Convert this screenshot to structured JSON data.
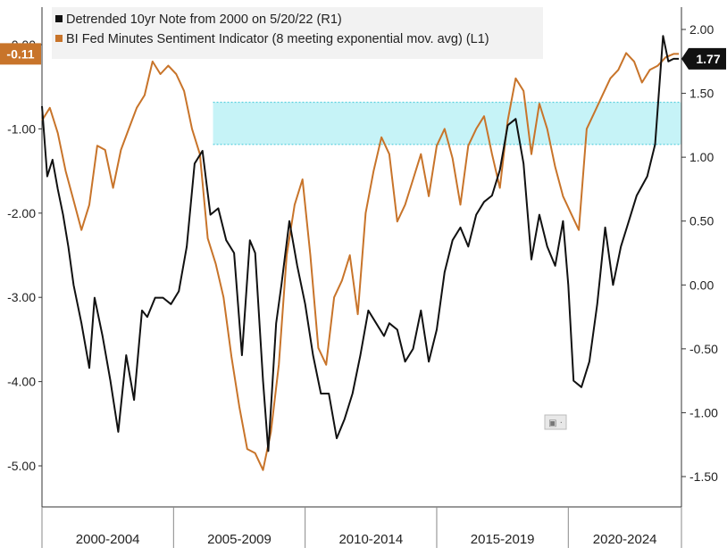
{
  "colors": {
    "note_series": "#111111",
    "sentiment_series": "#c8742a",
    "band_fill": "#c6f3f7",
    "band_edge": "#3cc8d8",
    "badge_left": "#c8742a",
    "badge_right": "#111111"
  },
  "chart_data": {
    "type": "line",
    "title": "",
    "xlabel": "",
    "ylabel_left": "",
    "ylabel_right": "",
    "xlim": [
      2000.0,
      2024.3
    ],
    "x_axis_categories": [
      "2000-2004",
      "2005-2009",
      "2010-2014",
      "2015-2019",
      "2020-2024"
    ],
    "x_category_bounds": [
      2000.0,
      2005.0,
      2010.0,
      2015.0,
      2020.0,
      2024.3
    ],
    "ylim_left": [
      -5.5,
      0.5
    ],
    "ylim_right": [
      -1.75,
      2.2
    ],
    "left_ticks": [
      "0.00",
      "-1.00",
      "-2.00",
      "-3.00",
      "-4.00",
      "-5.00"
    ],
    "right_ticks": [
      "2.00",
      "1.50",
      "1.00",
      "0.50",
      "0.00",
      "-0.50",
      "-1.00",
      "-1.50"
    ],
    "grid": false,
    "legend_position": "top-left",
    "highlight_band_right_axis": [
      1.1,
      1.43
    ],
    "highlight_band_x": [
      2006.5,
      2024.3
    ],
    "series": [
      {
        "name": "Detrended 10yr Note from 2000 on 5/20/22 (R1)",
        "axis": "right",
        "current_value_label": "1.77",
        "x": [
          2000.0,
          2000.2,
          2000.4,
          2000.6,
          2000.8,
          2001.0,
          2001.2,
          2001.5,
          2001.8,
          2002.0,
          2002.3,
          2002.6,
          2002.9,
          2003.2,
          2003.5,
          2003.8,
          2004.0,
          2004.3,
          2004.6,
          2004.9,
          2005.2,
          2005.5,
          2005.8,
          2006.1,
          2006.4,
          2006.7,
          2007.0,
          2007.3,
          2007.6,
          2007.9,
          2008.1,
          2008.4,
          2008.6,
          2008.9,
          2009.1,
          2009.4,
          2009.7,
          2010.0,
          2010.3,
          2010.6,
          2010.9,
          2011.2,
          2011.5,
          2011.8,
          2012.1,
          2012.4,
          2012.7,
          2013.0,
          2013.2,
          2013.5,
          2013.8,
          2014.1,
          2014.4,
          2014.7,
          2015.0,
          2015.3,
          2015.6,
          2015.9,
          2016.2,
          2016.5,
          2016.8,
          2017.1,
          2017.4,
          2017.7,
          2018.0,
          2018.3,
          2018.6,
          2018.9,
          2019.2,
          2019.5,
          2019.8,
          2020.0,
          2020.2,
          2020.5,
          2020.8,
          2021.1,
          2021.4,
          2021.7,
          2022.0,
          2022.3,
          2022.6,
          2023.0,
          2023.3,
          2023.6,
          2023.8,
          2024.0,
          2024.2
        ],
        "y": [
          1.4,
          0.85,
          0.98,
          0.75,
          0.55,
          0.3,
          0.0,
          -0.3,
          -0.65,
          -0.1,
          -0.4,
          -0.75,
          -1.15,
          -0.55,
          -0.9,
          -0.2,
          -0.25,
          -0.1,
          -0.1,
          -0.15,
          -0.05,
          0.3,
          0.95,
          1.05,
          0.55,
          0.6,
          0.35,
          0.25,
          -0.55,
          0.35,
          0.25,
          -0.75,
          -1.3,
          -0.3,
          0.0,
          0.5,
          0.15,
          -0.15,
          -0.55,
          -0.85,
          -0.85,
          -1.2,
          -1.05,
          -0.85,
          -0.55,
          -0.2,
          -0.3,
          -0.4,
          -0.3,
          -0.35,
          -0.6,
          -0.5,
          -0.2,
          -0.6,
          -0.35,
          0.1,
          0.35,
          0.45,
          0.3,
          0.55,
          0.65,
          0.7,
          0.9,
          1.25,
          1.3,
          0.95,
          0.2,
          0.55,
          0.3,
          0.15,
          0.5,
          0.0,
          -0.75,
          -0.8,
          -0.6,
          -0.15,
          0.45,
          0.0,
          0.3,
          0.5,
          0.7,
          0.85,
          1.1,
          1.95,
          1.75,
          1.77,
          1.77
        ]
      },
      {
        "name": "BI Fed Minutes Sentiment Indicator (8 meeting exponential mov. avg) (L1)",
        "axis": "left",
        "current_value_label": "-0.11",
        "x": [
          2000.0,
          2000.3,
          2000.6,
          2000.9,
          2001.2,
          2001.5,
          2001.8,
          2002.1,
          2002.4,
          2002.7,
          2003.0,
          2003.3,
          2003.6,
          2003.9,
          2004.2,
          2004.5,
          2004.8,
          2005.1,
          2005.4,
          2005.7,
          2006.0,
          2006.3,
          2006.6,
          2006.9,
          2007.2,
          2007.5,
          2007.8,
          2008.1,
          2008.4,
          2008.7,
          2009.0,
          2009.3,
          2009.6,
          2009.9,
          2010.2,
          2010.5,
          2010.8,
          2011.1,
          2011.4,
          2011.7,
          2012.0,
          2012.3,
          2012.6,
          2012.9,
          2013.2,
          2013.5,
          2013.8,
          2014.1,
          2014.4,
          2014.7,
          2015.0,
          2015.3,
          2015.6,
          2015.9,
          2016.2,
          2016.5,
          2016.8,
          2017.1,
          2017.4,
          2017.7,
          2018.0,
          2018.3,
          2018.6,
          2018.9,
          2019.2,
          2019.5,
          2019.8,
          2020.1,
          2020.4,
          2020.7,
          2021.0,
          2021.3,
          2021.6,
          2021.9,
          2022.2,
          2022.5,
          2022.8,
          2023.1,
          2023.4,
          2023.7,
          2024.0,
          2024.2
        ],
        "y": [
          -0.9,
          -0.75,
          -1.05,
          -1.5,
          -1.85,
          -2.2,
          -1.9,
          -1.2,
          -1.25,
          -1.7,
          -1.25,
          -1.0,
          -0.75,
          -0.6,
          -0.2,
          -0.35,
          -0.25,
          -0.35,
          -0.55,
          -1.0,
          -1.3,
          -2.3,
          -2.6,
          -3.0,
          -3.7,
          -4.3,
          -4.8,
          -4.85,
          -5.05,
          -4.6,
          -3.8,
          -2.5,
          -1.9,
          -1.6,
          -2.5,
          -3.6,
          -3.8,
          -3.0,
          -2.8,
          -2.5,
          -3.2,
          -2.0,
          -1.5,
          -1.1,
          -1.3,
          -2.1,
          -1.9,
          -1.6,
          -1.3,
          -1.8,
          -1.2,
          -1.0,
          -1.35,
          -1.9,
          -1.2,
          -1.0,
          -0.85,
          -1.3,
          -1.7,
          -0.9,
          -0.4,
          -0.55,
          -1.3,
          -0.7,
          -1.0,
          -1.45,
          -1.8,
          -2.0,
          -2.2,
          -1.0,
          -0.8,
          -0.6,
          -0.4,
          -0.3,
          -0.1,
          -0.2,
          -0.45,
          -0.3,
          -0.25,
          -0.15,
          -0.11,
          -0.11
        ]
      }
    ]
  },
  "ui": {
    "option_glyph": "▣ ·"
  }
}
